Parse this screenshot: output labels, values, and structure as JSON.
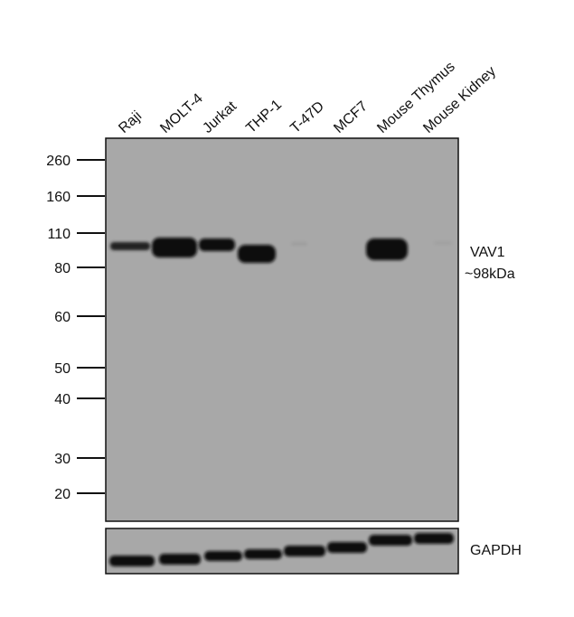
{
  "lanes": [
    "Raji",
    "MOLT-4",
    "Jurkat",
    "THP-1",
    "T-47D",
    "MCF7",
    "Mouse Thymus",
    "Mouse Kidney"
  ],
  "markers": [
    260,
    160,
    110,
    80,
    60,
    50,
    40,
    30,
    20
  ],
  "target": {
    "name": "VAV1",
    "size": "~98kDa"
  },
  "loading_control": "GAPDH"
}
